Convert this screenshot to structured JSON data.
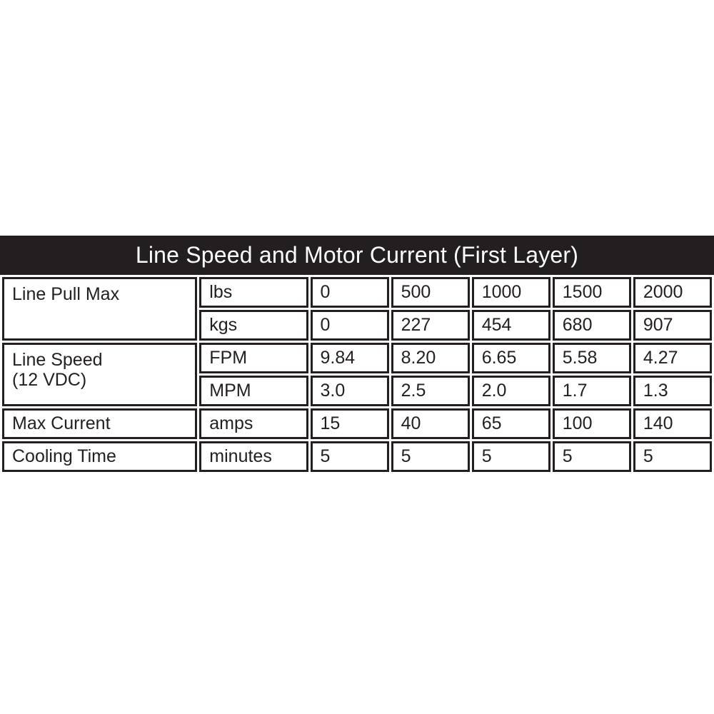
{
  "title": "Line Speed and Motor Current (First Layer)",
  "colors": {
    "header_bg": "#231f20",
    "header_text": "#ffffff",
    "cell_border": "#231f20",
    "cell_bg": "#ffffff",
    "page_bg": "#ffffff"
  },
  "table": {
    "row_groups": [
      {
        "label": "Line Pull Max"
      },
      {
        "line1": "Line Speed",
        "line2": "(12 VDC)"
      },
      {
        "label": "Max Current"
      },
      {
        "label": "Cooling Time"
      }
    ],
    "rows": [
      {
        "unit": "lbs",
        "values": [
          "0",
          "500",
          "1000",
          "1500",
          "2000"
        ]
      },
      {
        "unit": "kgs",
        "values": [
          "0",
          "227",
          "454",
          "680",
          "907"
        ]
      },
      {
        "unit": "FPM",
        "values": [
          "9.84",
          "8.20",
          "6.65",
          "5.58",
          "4.27"
        ]
      },
      {
        "unit": "MPM",
        "values": [
          "3.0",
          "2.5",
          "2.0",
          "1.7",
          "1.3"
        ]
      },
      {
        "unit": "amps",
        "values": [
          "15",
          "40",
          "65",
          "100",
          "140"
        ]
      },
      {
        "unit": "minutes",
        "values": [
          "5",
          "5",
          "5",
          "5",
          "5"
        ]
      }
    ]
  }
}
